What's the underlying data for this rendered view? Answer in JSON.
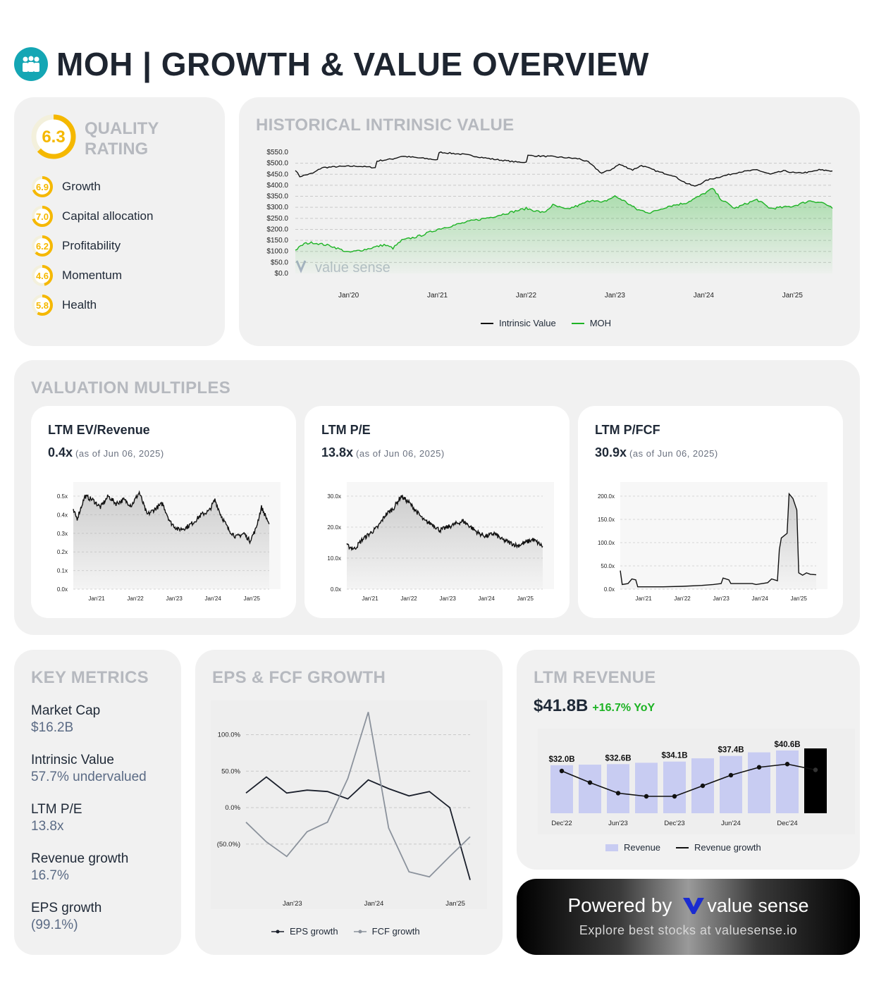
{
  "header": {
    "title": "MOH | GROWTH & VALUE OVERVIEW"
  },
  "quality": {
    "score": "6.3",
    "score_value": 6.3,
    "label": "QUALITY RATING",
    "items": [
      {
        "label": "Growth",
        "score": "6.9",
        "value": 6.9
      },
      {
        "label": "Capital allocation",
        "score": "7.0",
        "value": 7.0
      },
      {
        "label": "Profitability",
        "score": "6.2",
        "value": 6.2
      },
      {
        "label": "Momentum",
        "score": "4.6",
        "value": 4.6
      },
      {
        "label": "Health",
        "score": "5.8",
        "value": 5.8
      }
    ],
    "ring_color": "#f5b800"
  },
  "historical": {
    "title": "HISTORICAL INTRINSIC VALUE",
    "watermark": "value sense",
    "legend": [
      "Intrinsic Value",
      "MOH"
    ]
  },
  "valuation": {
    "title": "VALUATION MULTIPLES",
    "cards": [
      {
        "title": "LTM EV/Revenue",
        "value": "0.4x",
        "asof": "(as of Jun 06, 2025)"
      },
      {
        "title": "LTM P/E",
        "value": "13.8x",
        "asof": "(as of Jun 06, 2025)"
      },
      {
        "title": "LTM P/FCF",
        "value": "30.9x",
        "asof": "(as of Jun 06, 2025)"
      }
    ]
  },
  "key_metrics": {
    "title": "KEY METRICS",
    "items": [
      {
        "label": "Market Cap",
        "value": "$16.2B"
      },
      {
        "label": "Intrinsic Value",
        "value": "57.7% undervalued"
      },
      {
        "label": "LTM P/E",
        "value": "13.8x"
      },
      {
        "label": "Revenue growth",
        "value": "16.7%"
      },
      {
        "label": "EPS growth",
        "value": "(99.1%)"
      }
    ]
  },
  "eps_fcf": {
    "title": "EPS & FCF GROWTH",
    "legend": [
      "EPS growth",
      "FCF growth"
    ]
  },
  "ltm_revenue": {
    "title": "LTM REVENUE",
    "value": "$41.8B",
    "yoy": "+16.7% YoY",
    "legend": [
      "Revenue",
      "Revenue growth"
    ]
  },
  "promo": {
    "powered": "Powered by",
    "brand": "value sense",
    "tagline": "Explore best stocks at valuesense.io"
  },
  "colors": {
    "green": "#1db324",
    "black": "#111111",
    "grey_line": "#8b929c",
    "bar": "#c8ccf2",
    "bar_last": "#000000",
    "brand_blue": "#1a2bd1"
  },
  "chart_data": [
    {
      "id": "historical",
      "type": "line",
      "x_ticks": [
        "Jan'20",
        "Jan'21",
        "Jan'22",
        "Jan'23",
        "Jan'24",
        "Jan'25"
      ],
      "y_ticks": [
        "$550.0",
        "$500.0",
        "$450.0",
        "$400.0",
        "$350.0",
        "$300.0",
        "$250.0",
        "$200.0",
        "$150.0",
        "$100.0",
        "$50.0",
        "$0.0"
      ],
      "ylim": [
        0,
        550
      ],
      "x_start": 2019.4,
      "x_end": 2025.45,
      "series": [
        {
          "name": "Intrinsic Value",
          "color": "#111111",
          "points": [
            [
              2019.4,
              470
            ],
            [
              2019.45,
              440
            ],
            [
              2019.6,
              455
            ],
            [
              2019.7,
              480
            ],
            [
              2019.9,
              485
            ],
            [
              2020.1,
              487
            ],
            [
              2020.3,
              480
            ],
            [
              2020.32,
              510
            ],
            [
              2020.5,
              520
            ],
            [
              2020.6,
              532
            ],
            [
              2020.9,
              520
            ],
            [
              2021.0,
              515
            ],
            [
              2021.02,
              550
            ],
            [
              2021.3,
              540
            ],
            [
              2021.6,
              520
            ],
            [
              2021.9,
              505
            ],
            [
              2022.0,
              505
            ],
            [
              2022.02,
              535
            ],
            [
              2022.3,
              530
            ],
            [
              2022.6,
              520
            ],
            [
              2022.7,
              505
            ],
            [
              2022.85,
              455
            ],
            [
              2022.95,
              470
            ],
            [
              2023.05,
              495
            ],
            [
              2023.2,
              470
            ],
            [
              2023.3,
              490
            ],
            [
              2023.5,
              460
            ],
            [
              2023.65,
              445
            ],
            [
              2023.8,
              410
            ],
            [
              2023.9,
              395
            ],
            [
              2024.05,
              425
            ],
            [
              2024.2,
              440
            ],
            [
              2024.4,
              460
            ],
            [
              2024.6,
              470
            ],
            [
              2024.75,
              450
            ],
            [
              2024.9,
              465
            ],
            [
              2025.05,
              455
            ],
            [
              2025.2,
              460
            ],
            [
              2025.3,
              470
            ],
            [
              2025.45,
              465
            ]
          ]
        },
        {
          "name": "MOH",
          "color": "#1db324",
          "points": [
            [
              2019.4,
              105
            ],
            [
              2019.5,
              135
            ],
            [
              2019.6,
              140
            ],
            [
              2019.8,
              125
            ],
            [
              2019.9,
              110
            ],
            [
              2020.0,
              95
            ],
            [
              2020.2,
              110
            ],
            [
              2020.4,
              130
            ],
            [
              2020.5,
              115
            ],
            [
              2020.6,
              150
            ],
            [
              2020.8,
              170
            ],
            [
              2021.0,
              200
            ],
            [
              2021.2,
              220
            ],
            [
              2021.4,
              240
            ],
            [
              2021.6,
              255
            ],
            [
              2021.8,
              275
            ],
            [
              2022.0,
              295
            ],
            [
              2022.2,
              275
            ],
            [
              2022.3,
              310
            ],
            [
              2022.45,
              290
            ],
            [
              2022.6,
              310
            ],
            [
              2022.75,
              335
            ],
            [
              2022.85,
              320
            ],
            [
              2023.0,
              350
            ],
            [
              2023.1,
              330
            ],
            [
              2023.25,
              290
            ],
            [
              2023.4,
              275
            ],
            [
              2023.6,
              305
            ],
            [
              2023.8,
              320
            ],
            [
              2023.95,
              350
            ],
            [
              2024.1,
              385
            ],
            [
              2024.2,
              335
            ],
            [
              2024.35,
              295
            ],
            [
              2024.5,
              320
            ],
            [
              2024.6,
              335
            ],
            [
              2024.75,
              295
            ],
            [
              2024.9,
              300
            ],
            [
              2025.0,
              305
            ],
            [
              2025.2,
              330
            ],
            [
              2025.35,
              320
            ],
            [
              2025.45,
              295
            ]
          ]
        }
      ]
    },
    {
      "id": "ev_revenue",
      "type": "area",
      "x_ticks": [
        "Jan'21",
        "Jan'22",
        "Jan'23",
        "Jan'24",
        "Jan'25"
      ],
      "y_ticks": [
        "0.5x",
        "0.4x",
        "0.3x",
        "0.2x",
        "0.1x",
        "0.0x"
      ],
      "ylim": [
        0,
        0.5
      ],
      "x_start": 2020.4,
      "x_end": 2025.45,
      "series": [
        {
          "name": "",
          "points": [
            [
              2020.4,
              0.42
            ],
            [
              2020.5,
              0.38
            ],
            [
              2020.7,
              0.5
            ],
            [
              2020.9,
              0.48
            ],
            [
              2021.1,
              0.44
            ],
            [
              2021.3,
              0.5
            ],
            [
              2021.5,
              0.46
            ],
            [
              2021.7,
              0.48
            ],
            [
              2021.9,
              0.45
            ],
            [
              2022.1,
              0.52
            ],
            [
              2022.3,
              0.4
            ],
            [
              2022.5,
              0.43
            ],
            [
              2022.7,
              0.46
            ],
            [
              2022.9,
              0.36
            ],
            [
              2023.1,
              0.32
            ],
            [
              2023.3,
              0.33
            ],
            [
              2023.5,
              0.36
            ],
            [
              2023.7,
              0.4
            ],
            [
              2023.9,
              0.42
            ],
            [
              2024.05,
              0.48
            ],
            [
              2024.2,
              0.4
            ],
            [
              2024.4,
              0.32
            ],
            [
              2024.6,
              0.28
            ],
            [
              2024.8,
              0.3
            ],
            [
              2024.95,
              0.26
            ],
            [
              2025.1,
              0.32
            ],
            [
              2025.25,
              0.44
            ],
            [
              2025.45,
              0.35
            ]
          ]
        }
      ]
    },
    {
      "id": "pe",
      "type": "area",
      "x_ticks": [
        "Jan'21",
        "Jan'22",
        "Jan'23",
        "Jan'24",
        "Jan'25"
      ],
      "y_ticks": [
        "30.0x",
        "20.0x",
        "10.0x",
        "0.0x"
      ],
      "ylim": [
        0,
        30
      ],
      "x_start": 2020.4,
      "x_end": 2025.45,
      "series": [
        {
          "name": "",
          "points": [
            [
              2020.4,
              14
            ],
            [
              2020.6,
              13
            ],
            [
              2020.8,
              16
            ],
            [
              2021.0,
              18
            ],
            [
              2021.2,
              20
            ],
            [
              2021.4,
              24
            ],
            [
              2021.6,
              26
            ],
            [
              2021.8,
              30
            ],
            [
              2022.0,
              28
            ],
            [
              2022.2,
              25
            ],
            [
              2022.4,
              22
            ],
            [
              2022.6,
              21
            ],
            [
              2022.8,
              19
            ],
            [
              2023.0,
              20
            ],
            [
              2023.2,
              21
            ],
            [
              2023.4,
              22
            ],
            [
              2023.6,
              20
            ],
            [
              2023.8,
              18
            ],
            [
              2024.0,
              17
            ],
            [
              2024.2,
              18
            ],
            [
              2024.4,
              16
            ],
            [
              2024.6,
              15
            ],
            [
              2024.8,
              14
            ],
            [
              2025.0,
              15
            ],
            [
              2025.2,
              16
            ],
            [
              2025.45,
              13.8
            ]
          ]
        }
      ]
    },
    {
      "id": "pfcf",
      "type": "area",
      "x_ticks": [
        "Jan'21",
        "Jan'22",
        "Jan'23",
        "Jan'24",
        "Jan'25"
      ],
      "y_ticks": [
        "200.0x",
        "150.0x",
        "100.0x",
        "50.0x",
        "0.0x"
      ],
      "ylim": [
        0,
        200
      ],
      "x_start": 2020.4,
      "x_end": 2025.45,
      "series": [
        {
          "name": "",
          "points": [
            [
              2020.4,
              40
            ],
            [
              2020.45,
              10
            ],
            [
              2020.6,
              12
            ],
            [
              2020.7,
              22
            ],
            [
              2020.8,
              20
            ],
            [
              2020.85,
              5
            ],
            [
              2021.5,
              5
            ],
            [
              2022.0,
              6
            ],
            [
              2022.5,
              8
            ],
            [
              2022.8,
              10
            ],
            [
              2023.0,
              12
            ],
            [
              2023.05,
              24
            ],
            [
              2023.2,
              20
            ],
            [
              2023.25,
              12
            ],
            [
              2023.8,
              12
            ],
            [
              2023.9,
              10
            ],
            [
              2024.2,
              14
            ],
            [
              2024.3,
              22
            ],
            [
              2024.45,
              18
            ],
            [
              2024.5,
              85
            ],
            [
              2024.55,
              110
            ],
            [
              2024.7,
              120
            ],
            [
              2024.75,
              205
            ],
            [
              2024.85,
              195
            ],
            [
              2024.95,
              170
            ],
            [
              2025.0,
              35
            ],
            [
              2025.1,
              30
            ],
            [
              2025.2,
              35
            ],
            [
              2025.3,
              32
            ],
            [
              2025.45,
              30.9
            ]
          ]
        }
      ]
    },
    {
      "id": "eps_fcf",
      "type": "line",
      "x_ticks": [
        "Jan'23",
        "Jan'24",
        "Jan'25"
      ],
      "y_ticks": [
        "100.0%",
        "50.0%",
        "0.0%",
        "(50.0%)"
      ],
      "ylim": [
        -100,
        130
      ],
      "categories": [
        "Jun'22",
        "Sep'22",
        "Dec'22",
        "Mar'23",
        "Jun'23",
        "Sep'23",
        "Dec'23",
        "Mar'24",
        "Jun'24",
        "Sep'24",
        "Dec'24",
        "Mar'25"
      ],
      "series": [
        {
          "name": "EPS growth",
          "color": "#1a1f2b",
          "values": [
            20,
            42,
            20,
            24,
            22,
            12,
            38,
            26,
            16,
            22,
            0,
            -99.1
          ]
        },
        {
          "name": "FCF growth",
          "color": "#8b929c",
          "values": [
            -20,
            -47,
            -67,
            -33,
            -20,
            40,
            131,
            -28,
            -88,
            -95,
            -67,
            -40
          ]
        }
      ]
    },
    {
      "id": "ltm_revenue",
      "type": "bar",
      "x_ticks": [
        "Dec'22",
        "Jun'23",
        "Dec'23",
        "Jun'24",
        "Dec'24"
      ],
      "categories": [
        "Dec'22",
        "Mar'23",
        "Jun'23",
        "Sep'23",
        "Dec'23",
        "Mar'24",
        "Jun'24",
        "Sep'24",
        "Dec'24",
        "Mar'25"
      ],
      "values": [
        32.0,
        32.3,
        32.6,
        33.4,
        34.1,
        36.0,
        37.4,
        39.5,
        40.6,
        41.8
      ],
      "bar_labels": [
        "$32.0B",
        "",
        "$32.6B",
        "",
        "$34.1B",
        "",
        "$37.4B",
        "",
        "$40.6B",
        ""
      ],
      "growth": [
        0.8,
        0.58,
        0.38,
        0.32,
        0.32,
        0.52,
        0.72,
        0.87,
        0.93,
        0.82
      ]
    }
  ]
}
